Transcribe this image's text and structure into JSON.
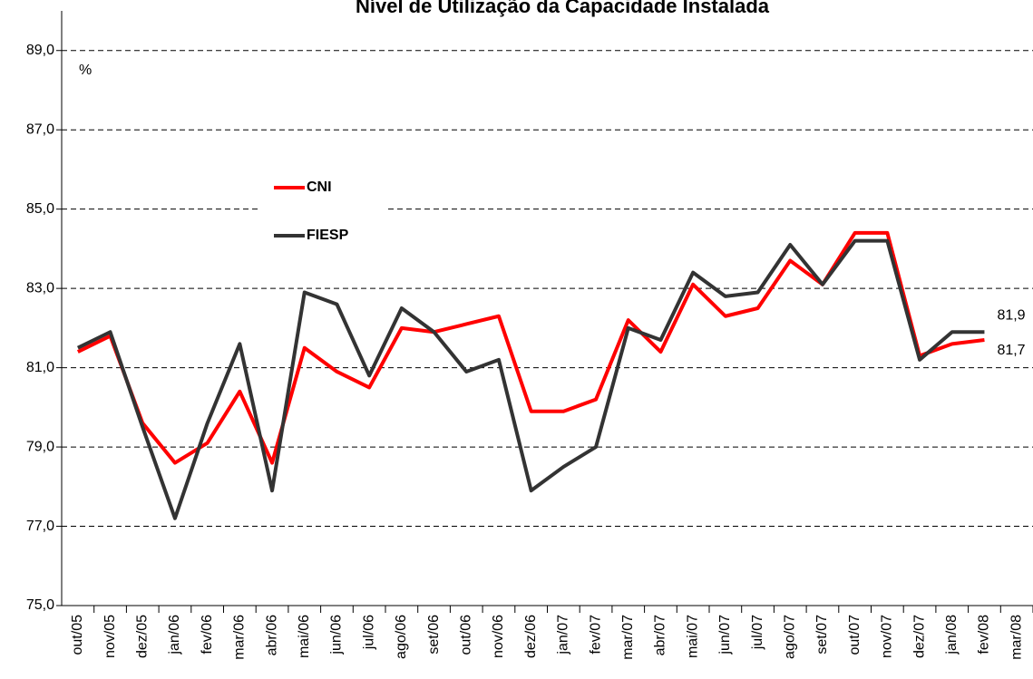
{
  "chart_data": {
    "type": "line",
    "title": "Nível de Utilização da Capacidade Instalada",
    "y_label": "%",
    "categories": [
      "out/05",
      "nov/05",
      "dez/05",
      "jan/06",
      "fev/06",
      "mar/06",
      "abr/06",
      "mai/06",
      "jun/06",
      "jul/06",
      "ago/06",
      "set/06",
      "out/06",
      "nov/06",
      "dez/06",
      "jan/07",
      "fev/07",
      "mar/07",
      "abr/07",
      "mai/07",
      "jun/07",
      "jul/07",
      "ago/07",
      "set/07",
      "out/07",
      "nov/07",
      "dez/07",
      "jan/08",
      "fev/08",
      "mar/08"
    ],
    "series": [
      {
        "name": "CNI",
        "color": "#ff0000",
        "values": [
          81.4,
          81.8,
          79.6,
          78.6,
          79.1,
          80.4,
          78.6,
          81.5,
          80.9,
          80.5,
          82.0,
          81.9,
          82.1,
          82.3,
          79.9,
          79.9,
          80.2,
          82.2,
          81.4,
          83.1,
          82.3,
          82.5,
          83.7,
          83.1,
          84.4,
          84.4,
          81.3,
          81.6,
          81.7,
          null
        ],
        "value_labels": [
          null,
          null,
          null,
          null,
          null,
          null,
          null,
          null,
          null,
          null,
          null,
          null,
          null,
          null,
          null,
          null,
          null,
          null,
          null,
          null,
          null,
          null,
          null,
          null,
          null,
          null,
          null,
          null,
          "81,7",
          null
        ]
      },
      {
        "name": "FIESP",
        "color": "#333333",
        "values": [
          81.5,
          81.9,
          79.5,
          77.2,
          79.6,
          81.6,
          77.9,
          82.9,
          82.6,
          80.8,
          82.5,
          81.9,
          80.9,
          81.2,
          77.9,
          78.5,
          79.0,
          82.0,
          81.7,
          83.4,
          82.8,
          82.9,
          84.1,
          83.1,
          84.2,
          84.2,
          81.2,
          81.9,
          81.9,
          null
        ],
        "value_labels": [
          null,
          null,
          null,
          null,
          null,
          null,
          null,
          null,
          null,
          null,
          null,
          null,
          null,
          null,
          null,
          null,
          null,
          null,
          null,
          null,
          null,
          null,
          null,
          null,
          null,
          null,
          null,
          null,
          "81,9",
          null
        ]
      }
    ],
    "ylim": [
      75,
      90
    ],
    "yticks": [
      {
        "value": 75,
        "label": "75,0"
      },
      {
        "value": 77,
        "label": "77,0"
      },
      {
        "value": 79,
        "label": "79,0"
      },
      {
        "value": 81,
        "label": "81,0"
      },
      {
        "value": 83,
        "label": "83,0"
      },
      {
        "value": 85,
        "label": "85,0"
      },
      {
        "value": 87,
        "label": "87,0"
      },
      {
        "value": 89,
        "label": "89,0"
      }
    ],
    "grid": true
  }
}
